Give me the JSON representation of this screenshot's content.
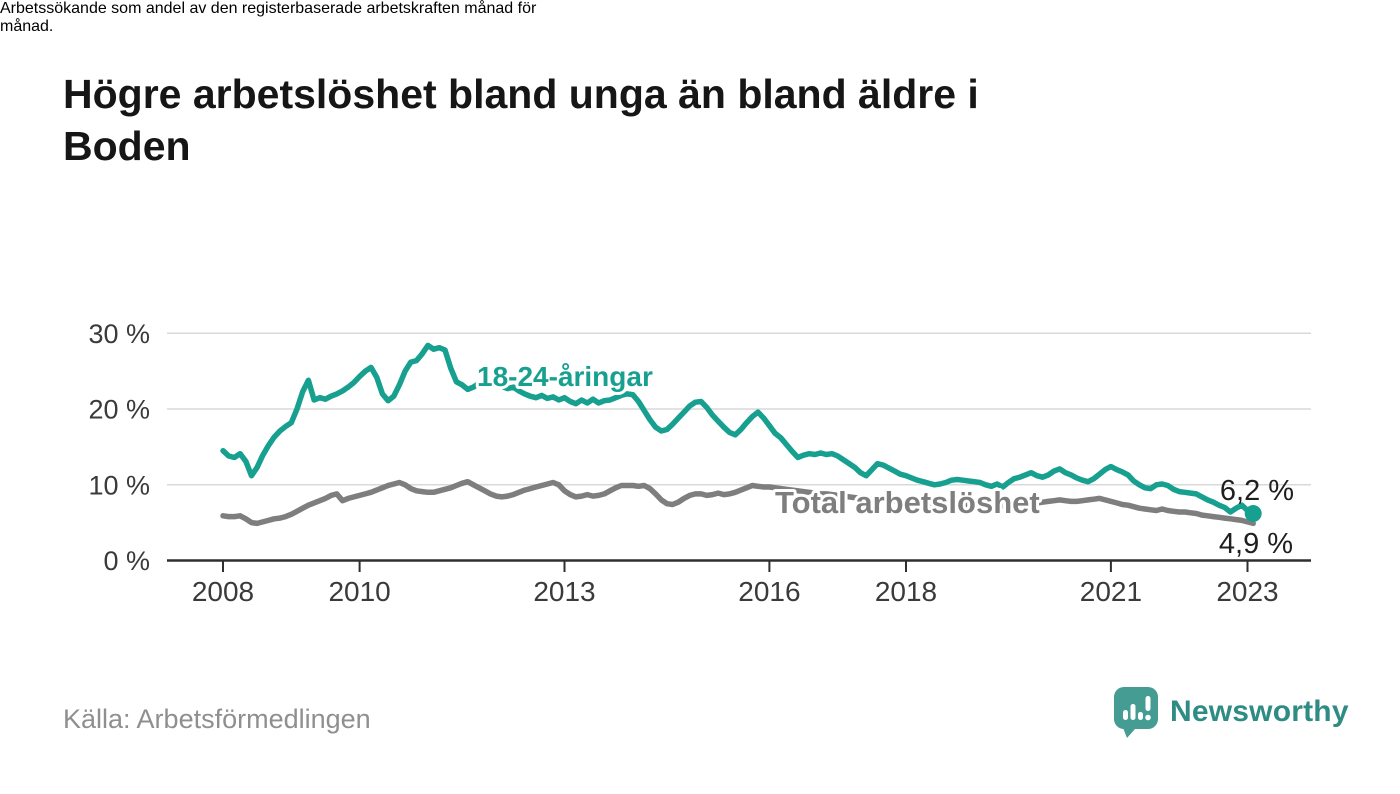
{
  "header": {
    "title_lines": [
      "Högre arbetslöshet bland unga än bland äldre i",
      "Boden"
    ],
    "subtitle_lines": [
      "Arbetssökande som andel av den registerbaserade arbetskraften månad för",
      "månad."
    ]
  },
  "footer": {
    "source": "Källa: Arbetsförmedlingen",
    "brand": "Newsworthy"
  },
  "colors": {
    "youth_line": "#17a08f",
    "total_line": "#7e7e7e",
    "annotation_text": "#1f1f1f",
    "axis": "#2f2f2f",
    "gridline": "#d9d9d9",
    "tick_label": "#3a3a3a",
    "brand_teal": "#459c92",
    "brand_text": "#2e8c85"
  },
  "chart_data": {
    "type": "line",
    "title": "Högre arbetslöshet bland unga än bland äldre i Boden",
    "subtitle": "Arbetssökande som andel av den registerbaserade arbetskraften månad för månad.",
    "frequency": "monthly",
    "start_year": 2008,
    "x_ticks": [
      2008,
      2010,
      2013,
      2016,
      2018,
      2021,
      2023
    ],
    "y_ticks": [
      0,
      10,
      20,
      30
    ],
    "y_tick_labels": [
      "0 %",
      "10 %",
      "20 %",
      "30 %"
    ],
    "ylim": [
      0,
      32
    ],
    "grid": "horizontal-only",
    "legend": "inline-labels-on-lines",
    "series": [
      {
        "name": "18-24-åringar",
        "color": "#17a08f",
        "end_label": "6,2 %",
        "end_value": 6.2,
        "values": [
          14.5,
          13.8,
          13.6,
          14.1,
          13.1,
          11.2,
          12.3,
          13.9,
          15.2,
          16.3,
          17.1,
          17.7,
          18.2,
          20.0,
          22.3,
          23.8,
          21.2,
          21.5,
          21.3,
          21.7,
          22.0,
          22.4,
          22.9,
          23.5,
          24.3,
          25.0,
          25.5,
          24.2,
          22.0,
          21.1,
          21.7,
          23.2,
          25.0,
          26.2,
          26.4,
          27.3,
          28.4,
          27.9,
          28.1,
          27.8,
          25.4,
          23.6,
          23.2,
          22.6,
          22.9,
          23.4,
          23.2,
          23.5,
          23.3,
          23.0,
          22.7,
          22.9,
          22.4,
          22.0,
          21.7,
          21.5,
          21.8,
          21.4,
          21.6,
          21.2,
          21.5,
          21.0,
          20.7,
          21.2,
          20.8,
          21.3,
          20.8,
          21.1,
          21.2,
          21.5,
          21.8,
          22.0,
          21.9,
          21.0,
          19.8,
          18.6,
          17.6,
          17.1,
          17.3,
          18.0,
          18.8,
          19.6,
          20.4,
          20.9,
          21.0,
          20.2,
          19.2,
          18.4,
          17.6,
          16.9,
          16.6,
          17.3,
          18.2,
          19.0,
          19.6,
          18.8,
          17.8,
          16.8,
          16.2,
          15.3,
          14.4,
          13.6,
          13.9,
          14.1,
          14.0,
          14.2,
          14.0,
          14.1,
          13.8,
          13.3,
          12.8,
          12.3,
          11.6,
          11.2,
          12.0,
          12.8,
          12.6,
          12.2,
          11.8,
          11.4,
          11.2,
          10.9,
          10.6,
          10.4,
          10.2,
          10.0,
          10.1,
          10.3,
          10.6,
          10.7,
          10.6,
          10.5,
          10.4,
          10.3,
          10.0,
          9.8,
          10.1,
          9.7,
          10.3,
          10.8,
          11.0,
          11.3,
          11.6,
          11.2,
          11.0,
          11.3,
          11.8,
          12.1,
          11.6,
          11.3,
          10.9,
          10.6,
          10.4,
          10.8,
          11.4,
          12.0,
          12.4,
          12.0,
          11.7,
          11.3,
          10.5,
          10.0,
          9.6,
          9.5,
          10.0,
          10.1,
          9.9,
          9.4,
          9.1,
          9.0,
          8.9,
          8.8,
          8.4,
          8.0,
          7.7,
          7.3,
          7.0,
          6.4,
          6.9,
          7.3,
          6.6,
          6.2
        ]
      },
      {
        "name": "Total arbetslöshet",
        "color": "#7e7e7e",
        "end_label": "4,9 %",
        "end_value": 4.9,
        "values": [
          5.9,
          5.8,
          5.8,
          5.9,
          5.5,
          5.0,
          4.9,
          5.1,
          5.3,
          5.5,
          5.6,
          5.8,
          6.1,
          6.5,
          6.9,
          7.3,
          7.6,
          7.9,
          8.2,
          8.6,
          8.8,
          7.9,
          8.2,
          8.4,
          8.6,
          8.8,
          9.0,
          9.3,
          9.6,
          9.9,
          10.1,
          10.3,
          10.0,
          9.5,
          9.2,
          9.1,
          9.0,
          9.0,
          9.2,
          9.4,
          9.6,
          9.9,
          10.2,
          10.4,
          10.0,
          9.6,
          9.2,
          8.8,
          8.5,
          8.4,
          8.5,
          8.7,
          9.0,
          9.3,
          9.5,
          9.7,
          9.9,
          10.1,
          10.3,
          10.0,
          9.2,
          8.7,
          8.4,
          8.5,
          8.7,
          8.5,
          8.6,
          8.8,
          9.2,
          9.6,
          9.9,
          9.9,
          9.9,
          9.8,
          9.9,
          9.5,
          8.8,
          8.0,
          7.5,
          7.4,
          7.7,
          8.2,
          8.6,
          8.8,
          8.8,
          8.6,
          8.7,
          8.9,
          8.7,
          8.8,
          9.0,
          9.3,
          9.6,
          9.9,
          9.8,
          9.7,
          9.7,
          9.6,
          9.5,
          9.4,
          9.3,
          9.2,
          9.1,
          9.0,
          8.9,
          8.8,
          8.8,
          8.7,
          8.6,
          8.5,
          8.4,
          8.3,
          8.2,
          8.1,
          8.1,
          8.0,
          8.0,
          7.9,
          7.9,
          7.8,
          7.8,
          7.7,
          7.7,
          7.6,
          7.6,
          7.5,
          7.5,
          7.5,
          7.4,
          7.4,
          7.4,
          7.4,
          7.4,
          7.3,
          7.3,
          7.3,
          7.3,
          7.2,
          7.2,
          7.3,
          7.3,
          7.4,
          7.5,
          7.6,
          7.7,
          7.8,
          7.9,
          8.0,
          7.9,
          7.8,
          7.8,
          7.9,
          8.0,
          8.1,
          8.2,
          8.0,
          7.8,
          7.6,
          7.4,
          7.3,
          7.1,
          6.9,
          6.8,
          6.7,
          6.6,
          6.8,
          6.6,
          6.5,
          6.4,
          6.4,
          6.3,
          6.2,
          6.0,
          5.9,
          5.8,
          5.7,
          5.6,
          5.5,
          5.4,
          5.3,
          5.1,
          4.9
        ]
      }
    ]
  }
}
